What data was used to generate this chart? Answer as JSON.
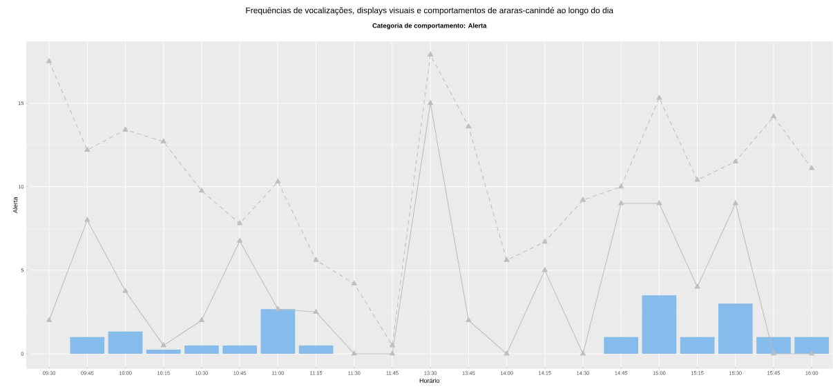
{
  "chart_data": {
    "type": "bar",
    "title": "Frequências de vocalizações, displays visuais e comportamentos de araras-canindé ao longo do dia",
    "subtitle": "Categoria de comportamento: Alerta",
    "xlabel": "Horário",
    "ylabel": "Alerta",
    "categories": [
      "09:30",
      "09:45",
      "10:00",
      "10:15",
      "10:30",
      "10:45",
      "11:00",
      "11:15",
      "11:30",
      "11:45",
      "13:30",
      "13:45",
      "14:00",
      "14:15",
      "14:30",
      "14:45",
      "15:00",
      "15:15",
      "15:30",
      "15:45",
      "16:00"
    ],
    "series": [
      {
        "color": "#85bcec",
        "values": [
          null,
          1,
          1.33,
          0.25,
          0.5,
          0.5,
          2.67,
          0.5,
          null,
          null,
          null,
          null,
          null,
          null,
          null,
          1,
          3.5,
          1,
          3,
          1,
          1
        ]
      },
      {
        "type": "line",
        "color": "#bebebe",
        "line_style": "solid",
        "values": [
          2,
          8,
          3.75,
          0.5,
          2,
          6.75,
          2.67,
          2.5,
          0,
          0,
          15,
          2,
          0,
          5,
          0,
          9,
          9,
          4,
          9,
          0,
          0
        ]
      },
      {
        "type": "line",
        "color": "#bebebe",
        "line_style": "dashed",
        "values": [
          17.5,
          12.2,
          13.4,
          12.7,
          9.75,
          7.8,
          10.3,
          5.6,
          4.2,
          0.5,
          17.9,
          13.6,
          5.6,
          6.7,
          9.2,
          10,
          15.3,
          10.4,
          11.5,
          14.2,
          11.1
        ]
      }
    ],
    "ylim": [
      -0.9,
      18.7
    ],
    "yticks": [
      0,
      5,
      10,
      15
    ],
    "grid": true,
    "marker": "triangle"
  }
}
